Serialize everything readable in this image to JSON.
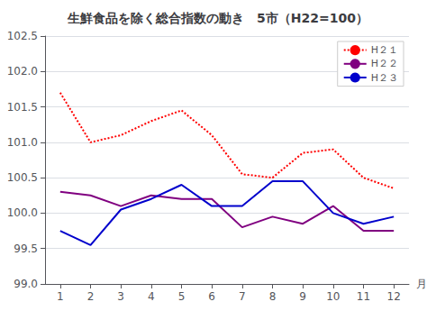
{
  "chart_data": {
    "type": "line",
    "title": "生鮮食品を除く総合指数の動き　5市（H22=100）",
    "xlabel": "月",
    "x": [
      1,
      2,
      3,
      4,
      5,
      6,
      7,
      8,
      9,
      10,
      11,
      12
    ],
    "series": [
      {
        "name": "H２１",
        "color": "#ff0000",
        "line_style": "dotted",
        "values": [
          101.7,
          101.0,
          101.1,
          101.3,
          101.45,
          101.1,
          100.55,
          100.5,
          100.85,
          100.9,
          100.5,
          100.35
        ]
      },
      {
        "name": "H２２",
        "color": "#800080",
        "line_style": "solid",
        "values": [
          100.3,
          100.25,
          100.1,
          100.25,
          100.2,
          100.2,
          99.8,
          99.95,
          99.85,
          100.1,
          99.75,
          99.75
        ]
      },
      {
        "name": "H２３",
        "color": "#0000cc",
        "line_style": "solid",
        "values": [
          99.75,
          99.55,
          100.05,
          100.2,
          100.4,
          100.1,
          100.1,
          100.45,
          100.45,
          100.0,
          99.85,
          99.95
        ]
      }
    ],
    "xlim": [
      0.5,
      12.5
    ],
    "xticks": [
      1,
      2,
      3,
      4,
      5,
      6,
      7,
      8,
      9,
      10,
      11,
      12
    ],
    "ylim": [
      99.0,
      102.5
    ],
    "yticks": [
      {
        "value": 99.0,
        "label": "99.0"
      },
      99.5,
      {
        "value": 100.0,
        "label": "100.0"
      },
      100.5,
      {
        "value": 101.0,
        "label": "101.0"
      },
      101.5,
      {
        "value": 102.0,
        "label": "102.0"
      },
      102.5
    ],
    "grid": true,
    "legend": "upper right"
  }
}
